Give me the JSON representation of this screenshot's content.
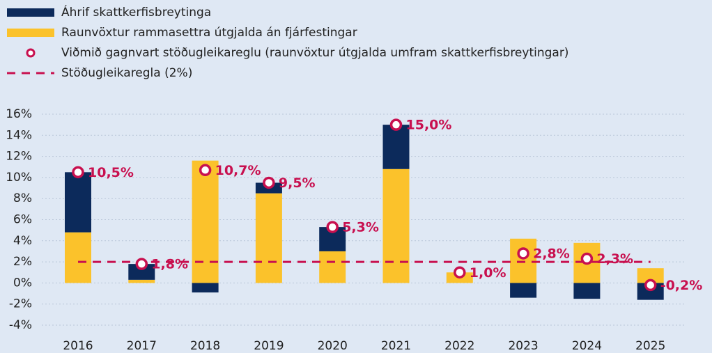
{
  "chart_data": {
    "type": "bar",
    "categories": [
      "2016",
      "2017",
      "2018",
      "2019",
      "2020",
      "2021",
      "2022",
      "2023",
      "2024",
      "2025"
    ],
    "series": [
      {
        "name": "Áhrif skattkerfisbreytinga",
        "type": "bar",
        "color": "#0c2a5b",
        "values": [
          5.7,
          1.5,
          -0.9,
          1.0,
          2.3,
          4.2,
          0,
          -1.4,
          -1.5,
          -1.6
        ]
      },
      {
        "name": "Raunvöxtur rammasettra útgjalda án fjárfestingar",
        "type": "bar",
        "color": "#fbc22b",
        "values": [
          4.8,
          0.3,
          11.6,
          8.5,
          3.0,
          10.8,
          1.0,
          4.2,
          3.8,
          1.4
        ]
      },
      {
        "name": "Viðmið gagnvart stöðugleikareglu (raunvöxtur útgjalda umfram skattkerfisbreytingar)",
        "type": "scatter",
        "color": "#c8104f",
        "values": [
          10.5,
          1.8,
          10.7,
          9.5,
          5.3,
          15.0,
          1.0,
          2.8,
          2.3,
          -0.2
        ],
        "value_labels": [
          "10,5%",
          "1,8%",
          "10,7%",
          "9,5%",
          "5,3%",
          "15,0%",
          "1,0%",
          "2,8%",
          "2,3%",
          "-0,2%"
        ]
      },
      {
        "name": "Stöðugleikaregla (2%)",
        "type": "line",
        "color": "#c8104f",
        "values": [
          2,
          2,
          2,
          2,
          2,
          2,
          2,
          2,
          2,
          2
        ]
      }
    ],
    "ylim": [
      -4,
      16
    ],
    "yticks": [
      {
        "value": -4,
        "label": "-4%"
      },
      {
        "value": -2,
        "label": "-2%"
      },
      {
        "value": 0,
        "label": "0%"
      },
      {
        "value": 2,
        "label": "2%"
      },
      {
        "value": 4,
        "label": "4%"
      },
      {
        "value": 6,
        "label": "6%"
      },
      {
        "value": 8,
        "label": "8%"
      },
      {
        "value": 10,
        "label": "10%"
      },
      {
        "value": 12,
        "label": "12%"
      },
      {
        "value": 14,
        "label": "14%"
      },
      {
        "value": 16,
        "label": "16%"
      }
    ],
    "grid": true
  }
}
